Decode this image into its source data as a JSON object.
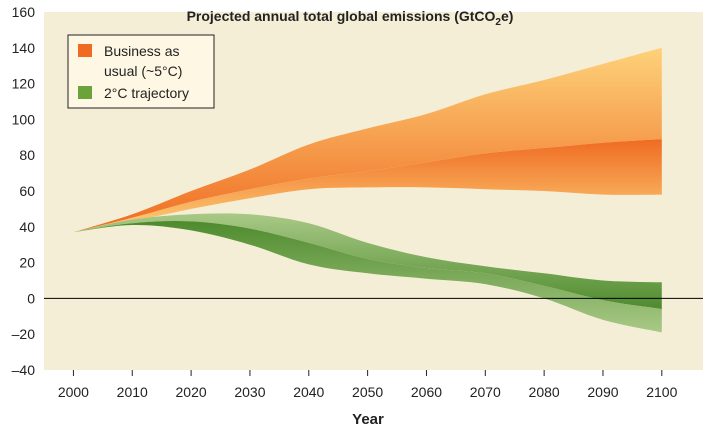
{
  "chart_data": {
    "type": "area",
    "title": "Projected annual total global emissions (GtCO",
    "title_sub": "2",
    "title_suffix": "e)",
    "xlabel": "Year",
    "ylabel": "",
    "xlim": [
      1995,
      2107
    ],
    "ylim": [
      -40,
      160
    ],
    "x_ticks": [
      2000,
      2010,
      2020,
      2030,
      2040,
      2050,
      2060,
      2070,
      2080,
      2090,
      2100
    ],
    "y_ticks": [
      160,
      140,
      120,
      100,
      80,
      60,
      40,
      20,
      0,
      -20,
      -40
    ],
    "y_tick_labels": [
      "160",
      "140",
      "120",
      "100",
      "80",
      "60",
      "40",
      "20",
      "0",
      "–20",
      "–40"
    ],
    "grid": false,
    "zero_line": true,
    "legend_position": "top-left",
    "colors": {
      "plot_background": "#f5eed6",
      "bau_edge": "#fdd27a",
      "bau_core": "#ef6b22",
      "two_c_edge": "#a9c987",
      "two_c_core": "#4e8b2d",
      "legend_bau": "#f06a22",
      "legend_two_c": "#6aa33a",
      "zero_line": "#000000"
    },
    "series": [
      {
        "name": "Business as usual (~5°C)",
        "name_lines": [
          "Business as",
          "usual (~5°C)"
        ],
        "x": [
          2000,
          2010,
          2020,
          2030,
          2040,
          2050,
          2060,
          2070,
          2080,
          2090,
          2100
        ],
        "upper": [
          37,
          47,
          60,
          72,
          86,
          95,
          103,
          114,
          122,
          131,
          140
        ],
        "middle": [
          37,
          45,
          54,
          61,
          67,
          71,
          76,
          81,
          84,
          87,
          89
        ],
        "lower": [
          37,
          43,
          50,
          56,
          61,
          62,
          62,
          61,
          60,
          58,
          58
        ]
      },
      {
        "name": "2°C trajectory",
        "name_lines": [
          "2°C trajectory"
        ],
        "x": [
          2000,
          2010,
          2020,
          2030,
          2040,
          2050,
          2060,
          2070,
          2080,
          2090,
          2100
        ],
        "upper": [
          37,
          44,
          47,
          47,
          42,
          31,
          23,
          18,
          14,
          10,
          9
        ],
        "middle": [
          37,
          42,
          43,
          39,
          31,
          22,
          17,
          14,
          7,
          -1,
          -6
        ],
        "lower": [
          37,
          41,
          38,
          30,
          19,
          14,
          11,
          8,
          0,
          -12,
          -19
        ]
      }
    ]
  }
}
